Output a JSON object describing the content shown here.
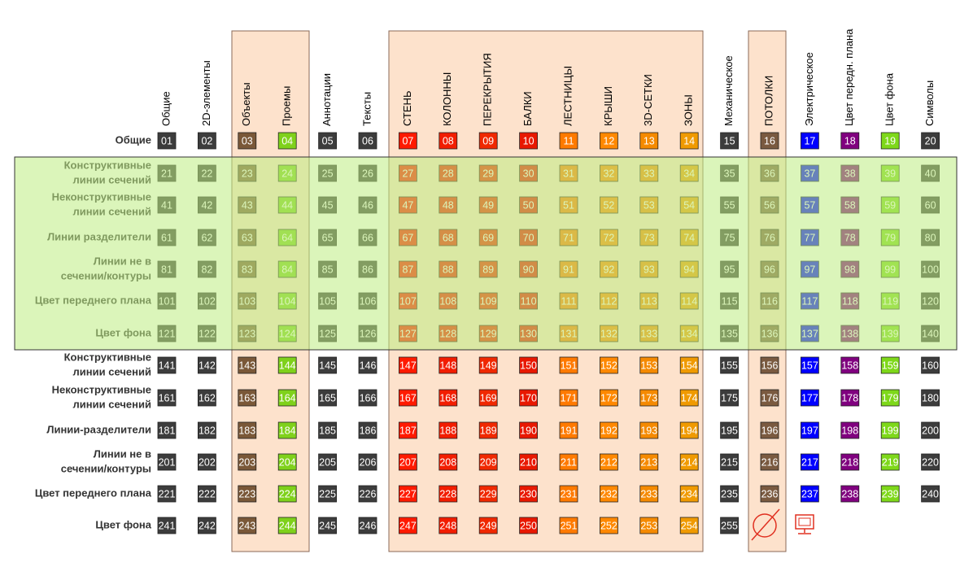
{
  "columns": [
    {
      "label": "Общие",
      "color": "#3c3c3c"
    },
    {
      "label": "2D-элементы",
      "color": "#3c3c3c"
    },
    {
      "label": "Объекты",
      "color": "#7a5838"
    },
    {
      "label": "Проемы",
      "color": "#7fd11b"
    },
    {
      "label": "Аннотации",
      "color": "#3c3c3c"
    },
    {
      "label": "Тексты",
      "color": "#3c3c3c"
    },
    {
      "label": "СТЕНЬ",
      "color": "#ff1a00"
    },
    {
      "label": "КОЛОННЫ",
      "color": "#f21d00"
    },
    {
      "label": "ПЕРЕКРЫТИЯ",
      "color": "#f02800"
    },
    {
      "label": "БАЛКИ",
      "color": "#e81800"
    },
    {
      "label": "ЛЕСТНИЦЫ",
      "color": "#ff7a00"
    },
    {
      "label": "КРЫШИ",
      "color": "#ff8800"
    },
    {
      "label": "3D-СЕТКИ",
      "color": "#f58a00"
    },
    {
      "label": "ЗОНЫ",
      "color": "#f09a00"
    },
    {
      "label": "Механическое",
      "color": "#3c3c3c"
    },
    {
      "label": "ПОТОЛКИ",
      "color": "#7a5a40"
    },
    {
      "label": "Электрическое",
      "color": "#0000ff"
    },
    {
      "label": "Цвет передн. плана",
      "color": "#80007f"
    },
    {
      "label": "Цвет фона",
      "color": "#7ed81a"
    },
    {
      "label": "Символы",
      "color": "#3c3c3c"
    }
  ],
  "rows": [
    {
      "label": [
        "Общие"
      ],
      "cells": [
        "01",
        "02",
        "03",
        "04",
        "05",
        "06",
        "07",
        "08",
        "09",
        "10",
        "11",
        "12",
        "13",
        "14",
        "15",
        "16",
        "17",
        "18",
        "19",
        "20"
      ]
    },
    {
      "label": [
        "Конструктивные",
        "линии сечений"
      ],
      "cells": [
        "21",
        "22",
        "23",
        "24",
        "25",
        "26",
        "27",
        "28",
        "29",
        "30",
        "31",
        "32",
        "33",
        "34",
        "35",
        "36",
        "37",
        "38",
        "39",
        "40"
      ]
    },
    {
      "label": [
        "Неконструктивные",
        "линии сечений"
      ],
      "cells": [
        "41",
        "42",
        "43",
        "44",
        "45",
        "46",
        "47",
        "48",
        "49",
        "50",
        "51",
        "52",
        "53",
        "54",
        "55",
        "56",
        "57",
        "58",
        "59",
        "60"
      ]
    },
    {
      "label": [
        "Линии разделители"
      ],
      "cells": [
        "61",
        "62",
        "63",
        "64",
        "65",
        "66",
        "67",
        "68",
        "69",
        "70",
        "71",
        "72",
        "73",
        "74",
        "75",
        "76",
        "77",
        "78",
        "79",
        "80"
      ]
    },
    {
      "label": [
        "Линии не в",
        "сечении/контуры"
      ],
      "cells": [
        "81",
        "82",
        "83",
        "84",
        "85",
        "86",
        "87",
        "88",
        "89",
        "90",
        "91",
        "92",
        "93",
        "94",
        "95",
        "96",
        "97",
        "98",
        "99",
        "100"
      ]
    },
    {
      "label": [
        "Цвет переднего плана"
      ],
      "cells": [
        "101",
        "102",
        "103",
        "104",
        "105",
        "106",
        "107",
        "108",
        "109",
        "110",
        "111",
        "112",
        "113",
        "114",
        "115",
        "116",
        "117",
        "118",
        "119",
        "120"
      ]
    },
    {
      "label": [
        "Цвет фона"
      ],
      "cells": [
        "121",
        "122",
        "123",
        "124",
        "125",
        "126",
        "127",
        "128",
        "129",
        "130",
        "131",
        "132",
        "133",
        "134",
        "135",
        "136",
        "137",
        "138",
        "139",
        "140"
      ]
    },
    {
      "label": [
        "Конструктивные",
        "линии сечений"
      ],
      "cells": [
        "141",
        "142",
        "143",
        "144",
        "145",
        "146",
        "147",
        "148",
        "149",
        "150",
        "151",
        "152",
        "153",
        "154",
        "155",
        "156",
        "157",
        "158",
        "159",
        "160"
      ]
    },
    {
      "label": [
        "Неконструктивные",
        "линии сечений"
      ],
      "cells": [
        "161",
        "162",
        "163",
        "164",
        "165",
        "166",
        "167",
        "168",
        "169",
        "170",
        "171",
        "172",
        "173",
        "174",
        "175",
        "176",
        "177",
        "178",
        "179",
        "180"
      ]
    },
    {
      "label": [
        "Линии-разделители"
      ],
      "cells": [
        "181",
        "182",
        "183",
        "184",
        "185",
        "186",
        "187",
        "188",
        "189",
        "190",
        "191",
        "192",
        "193",
        "194",
        "195",
        "196",
        "197",
        "198",
        "199",
        "200"
      ]
    },
    {
      "label": [
        "Линии не в",
        "сечении/контуры"
      ],
      "cells": [
        "201",
        "202",
        "203",
        "204",
        "205",
        "206",
        "207",
        "208",
        "209",
        "210",
        "211",
        "212",
        "213",
        "214",
        "215",
        "216",
        "217",
        "218",
        "219",
        "220"
      ]
    },
    {
      "label": [
        "Цвет переднего плана"
      ],
      "cells": [
        "221",
        "222",
        "223",
        "224",
        "225",
        "226",
        "227",
        "228",
        "229",
        "230",
        "231",
        "232",
        "233",
        "234",
        "235",
        "236",
        "237",
        "238",
        "239",
        "240"
      ]
    },
    {
      "label": [
        "Цвет фона"
      ],
      "cells": [
        "241",
        "242",
        "243",
        "244",
        "245",
        "246",
        "247",
        "248",
        "249",
        "250",
        "251",
        "252",
        "253",
        "254",
        "255"
      ]
    }
  ]
}
